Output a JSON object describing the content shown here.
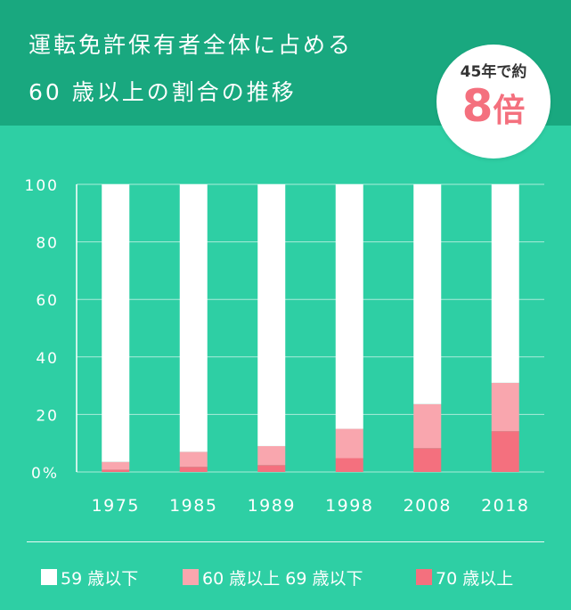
{
  "header": {
    "title_line1": "運転免許保有者全体に占める",
    "title_line2": "60 歳以上の割合の推移"
  },
  "badge": {
    "small": "45年で約",
    "big_number": "8",
    "big_unit": "倍"
  },
  "colors": {
    "header_bg": "#19a87f",
    "chart_bg": "#2ecfa4",
    "under_59": "#ffffff",
    "age_60_69": "#f9a6ae",
    "age_70_plus": "#f4707e"
  },
  "chart_data": {
    "type": "bar",
    "stacked": true,
    "title": "運転免許保有者全体に占める 60 歳以上の割合の推移",
    "categories": [
      "1975",
      "1985",
      "1989",
      "1998",
      "2008",
      "2018"
    ],
    "series": [
      {
        "name": "70 歳以上",
        "values": [
          0.8,
          1.8,
          2.4,
          4.8,
          8.3,
          14.2
        ]
      },
      {
        "name": "60 歳以上 69 歳以下",
        "values": [
          2.7,
          5.2,
          6.6,
          10.2,
          15.3,
          16.8
        ]
      },
      {
        "name": "59 歳以下",
        "values": [
          96.5,
          93.0,
          91.0,
          85.0,
          76.4,
          69.0
        ]
      }
    ],
    "y_ticks": [
      "0%",
      "20",
      "40",
      "60",
      "80",
      "100"
    ],
    "ylim": [
      0,
      100
    ],
    "grid": true,
    "legend_position": "bottom"
  },
  "legend": [
    {
      "label": "59 歳以下",
      "color": "#ffffff"
    },
    {
      "label": "60 歳以上 69 歳以下",
      "color": "#f9a6ae"
    },
    {
      "label": "70 歳以上",
      "color": "#f4707e"
    }
  ]
}
